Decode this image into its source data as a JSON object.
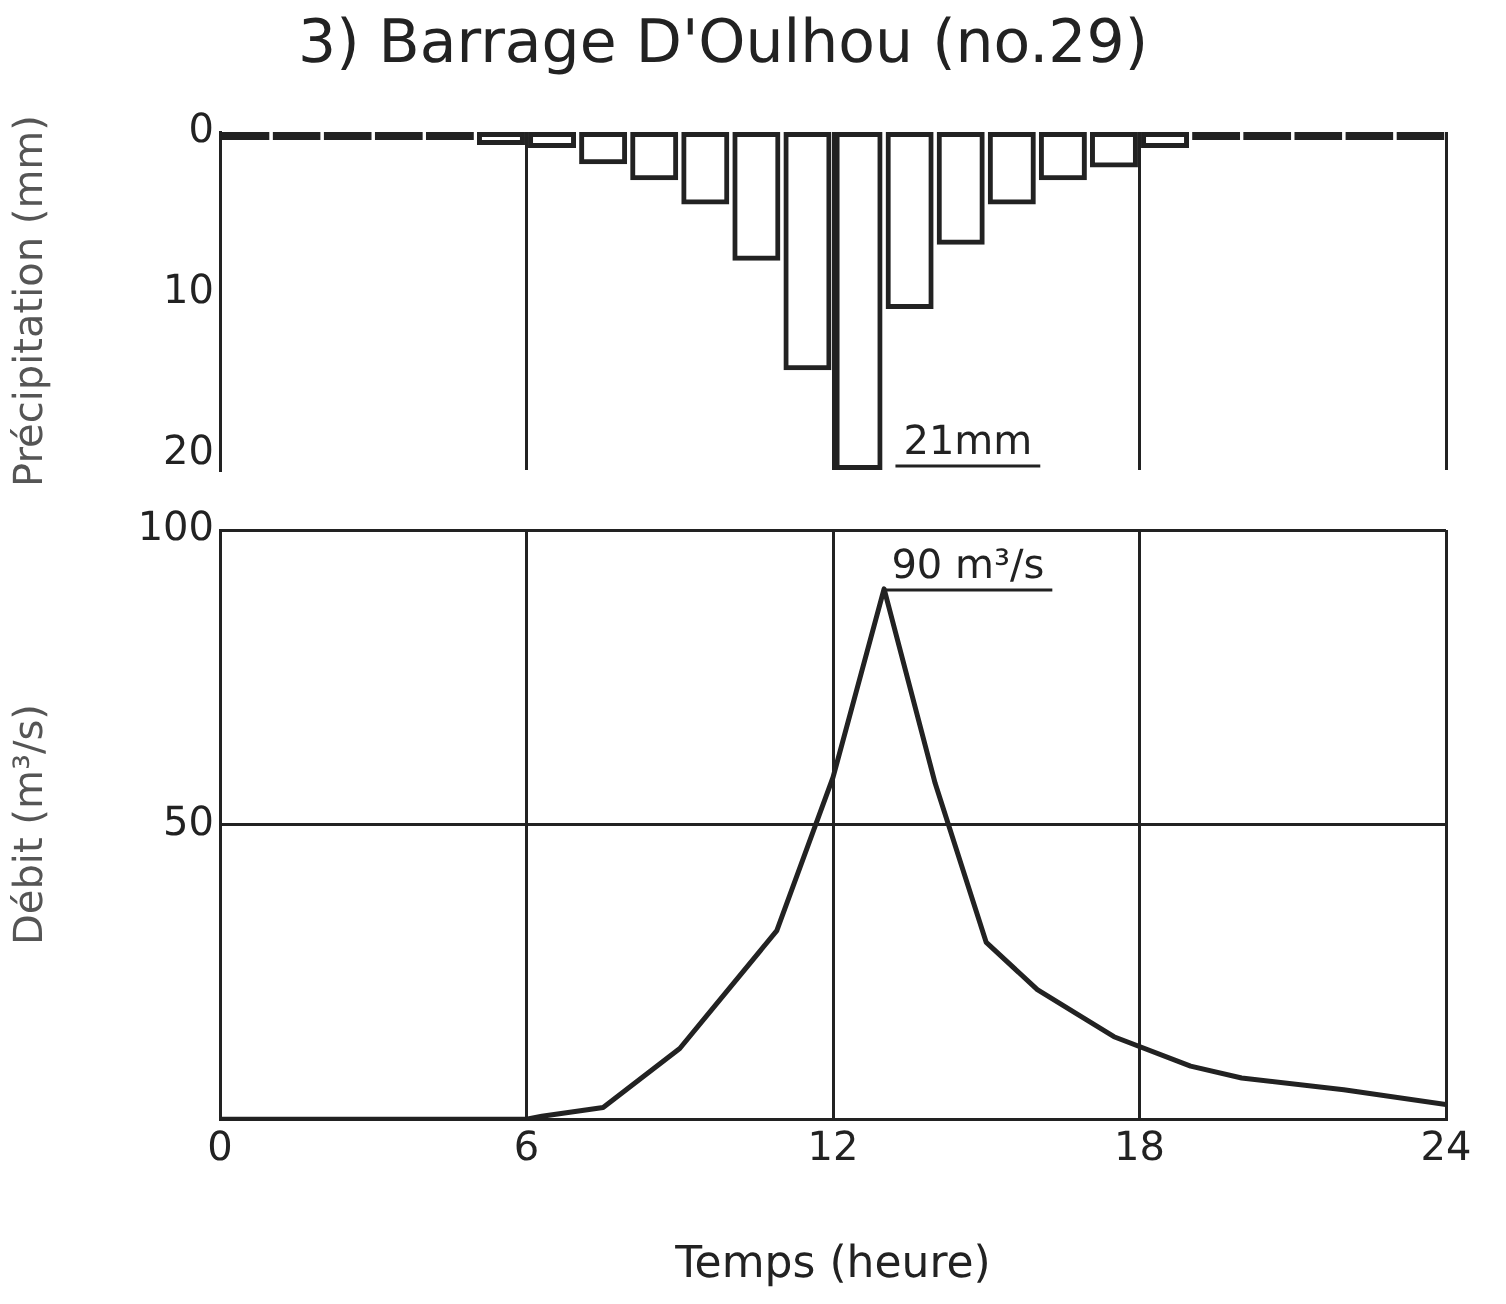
{
  "chart_data": [
    {
      "type": "bar",
      "title": "3) Barrage D'Oulhou (no.29)",
      "ylabel": "Précipitation (mm)",
      "color": "#222222",
      "x": [
        0.5,
        1.5,
        2.5,
        3.5,
        4.5,
        5.5,
        6.5,
        7.5,
        8.5,
        9.5,
        10.5,
        11.5,
        12.5,
        13.5,
        14.5,
        15.5,
        16.5,
        17.5,
        18.5,
        19.5,
        20.5,
        21.5,
        22.5,
        23.5
      ],
      "values": [
        0.5,
        0.5,
        0.5,
        0.5,
        0.5,
        0.8,
        1,
        2,
        3,
        4.5,
        8,
        14.8,
        21,
        11,
        7,
        4.5,
        3,
        2.2,
        1,
        0.5,
        0.5,
        0.5,
        0.5,
        0.5
      ],
      "xlim": [
        0,
        24
      ],
      "xticks": [
        0,
        6,
        12,
        18,
        24
      ],
      "ylim": [
        21,
        0
      ],
      "yticks": [
        0,
        10,
        20
      ],
      "grid": "x",
      "tick_labels": "y",
      "annotations": [
        "21mm"
      ]
    },
    {
      "type": "line",
      "xlabel": "Temps (heure)",
      "ylabel": "Débit (m³/s)",
      "color": "#222222",
      "marker": "none",
      "x": [
        0,
        6,
        6.3,
        7.5,
        9,
        10.9,
        12,
        13,
        14,
        15,
        16,
        17.5,
        19,
        20,
        22,
        24
      ],
      "values": [
        0,
        0,
        0.5,
        2,
        12,
        32,
        58,
        90,
        57,
        30,
        22,
        14,
        9,
        7,
        5,
        2.5
      ],
      "xlim": [
        0,
        24
      ],
      "xticks": [
        0,
        6,
        12,
        18,
        24
      ],
      "ylim": [
        0,
        100
      ],
      "yticks": [
        {
          "value": 0,
          "label": null
        },
        50,
        100
      ],
      "grid": true,
      "annotations": [
        "90 m³/s"
      ]
    }
  ]
}
